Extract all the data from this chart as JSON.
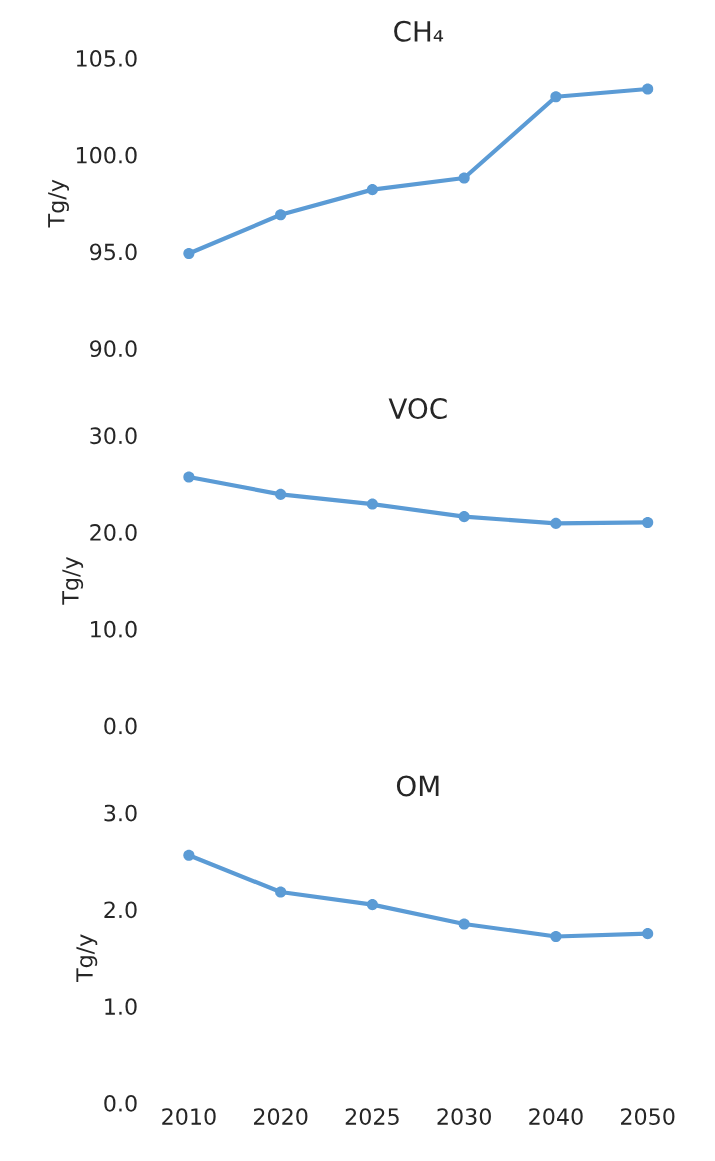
{
  "chart_data": [
    {
      "type": "line",
      "title": "CH₄",
      "ylabel": "Tg/y",
      "categories": [
        "2010",
        "2020",
        "2025",
        "2030",
        "2040",
        "2050"
      ],
      "tick_labels": "y",
      "marker": "circle",
      "grid": false,
      "legend": false,
      "ylim": [
        90,
        105
      ],
      "yticks": [
        {
          "value": 90,
          "label": "90.0"
        },
        {
          "value": 95,
          "label": "95.0"
        },
        {
          "value": 100,
          "label": "100.0"
        },
        {
          "value": 105,
          "label": "105.0"
        }
      ],
      "series": [
        {
          "color": "#5b9bd5",
          "values": [
            94.9,
            96.9,
            98.2,
            98.8,
            103.0,
            103.4
          ]
        }
      ]
    },
    {
      "type": "line",
      "title": "VOC",
      "ylabel": "Tg/y",
      "categories": [
        "2010",
        "2020",
        "2025",
        "2030",
        "2040",
        "2050"
      ],
      "tick_labels": "y",
      "marker": "circle",
      "grid": false,
      "legend": false,
      "ylim": [
        0,
        30
      ],
      "yticks": [
        {
          "value": 0,
          "label": "0.0"
        },
        {
          "value": 10,
          "label": "10.0"
        },
        {
          "value": 20,
          "label": "20.0"
        },
        {
          "value": 30,
          "label": "30.0"
        }
      ],
      "series": [
        {
          "color": "#5b9bd5",
          "values": [
            25.7,
            23.9,
            22.9,
            21.6,
            20.9,
            21.0
          ]
        }
      ]
    },
    {
      "type": "line",
      "title": "OM",
      "ylabel": "Tg/y",
      "categories": [
        "2010",
        "2020",
        "2025",
        "2030",
        "2040",
        "2050"
      ],
      "marker": "circle",
      "grid": false,
      "legend": false,
      "ylim": [
        0,
        3
      ],
      "yticks": [
        {
          "value": 0,
          "label": "0.0"
        },
        {
          "value": 1,
          "label": "1.0"
        },
        {
          "value": 2,
          "label": "2.0"
        },
        {
          "value": 3,
          "label": "3.0"
        }
      ],
      "series": [
        {
          "color": "#5b9bd5",
          "values": [
            2.56,
            2.18,
            2.05,
            1.85,
            1.72,
            1.75
          ]
        }
      ]
    }
  ]
}
